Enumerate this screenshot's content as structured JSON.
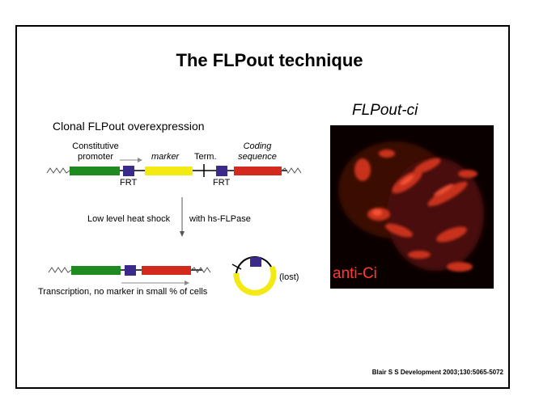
{
  "slide": {
    "title": "The FLPout technique",
    "subtitle": "Clonal FLPout overexpression",
    "right_title": "FLPout-ci",
    "photo_label": "anti-Ci",
    "credit": "Blair S S Development 2003;130:5065-5072"
  },
  "construct": {
    "promoter_label_line1": "Constitutive",
    "promoter_label_line2": "promoter",
    "marker_label": "marker",
    "term_label": "Term.",
    "coding_label_line1": "Coding",
    "coding_label_line2": "sequence",
    "frt_left": "FRT",
    "frt_right": "FRT"
  },
  "step": {
    "left_label": "Low level heat shock",
    "right_label": "with hs-FLPase"
  },
  "result": {
    "caption": "Transcription, no marker in small % of cells",
    "lost_label": "(lost)"
  },
  "colors": {
    "promoter": "#1f8a1f",
    "marker": "#f2ea12",
    "coding": "#d42a1e",
    "frt": "#3c2a8a",
    "photo_red": "#ff3b2a"
  }
}
